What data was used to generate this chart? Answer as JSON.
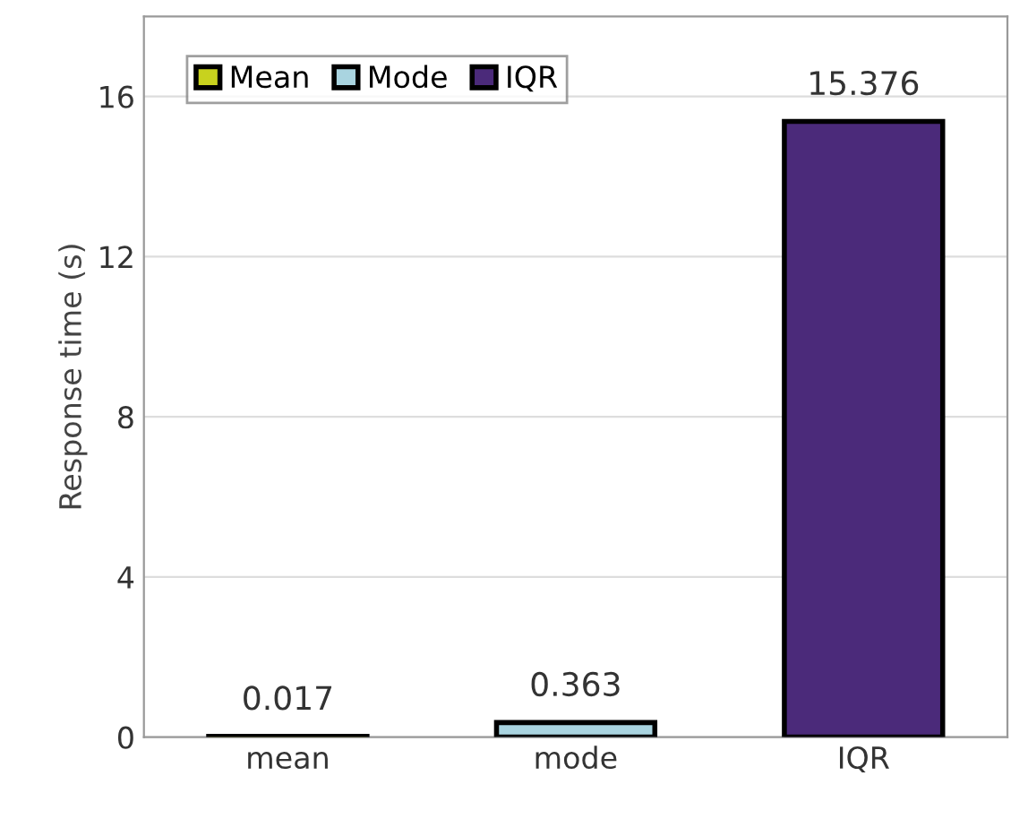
{
  "chart_data": {
    "type": "bar",
    "ylabel": "Response time (s)",
    "categories": [
      "mean",
      "mode",
      "IQR"
    ],
    "series": [
      {
        "name": "Mean",
        "color": "#c8d21e",
        "values": [
          0.017,
          null,
          null
        ]
      },
      {
        "name": "Mode",
        "color": "#a9d4e0",
        "values": [
          null,
          0.363,
          null
        ]
      },
      {
        "name": "IQR",
        "color": "#4b2a7a",
        "values": [
          null,
          null,
          15.376
        ]
      }
    ],
    "ylim": [
      0,
      18
    ],
    "yticks": [
      0,
      4,
      8,
      12,
      16
    ],
    "grid": "y",
    "legend": "top left",
    "data_labels": true
  }
}
